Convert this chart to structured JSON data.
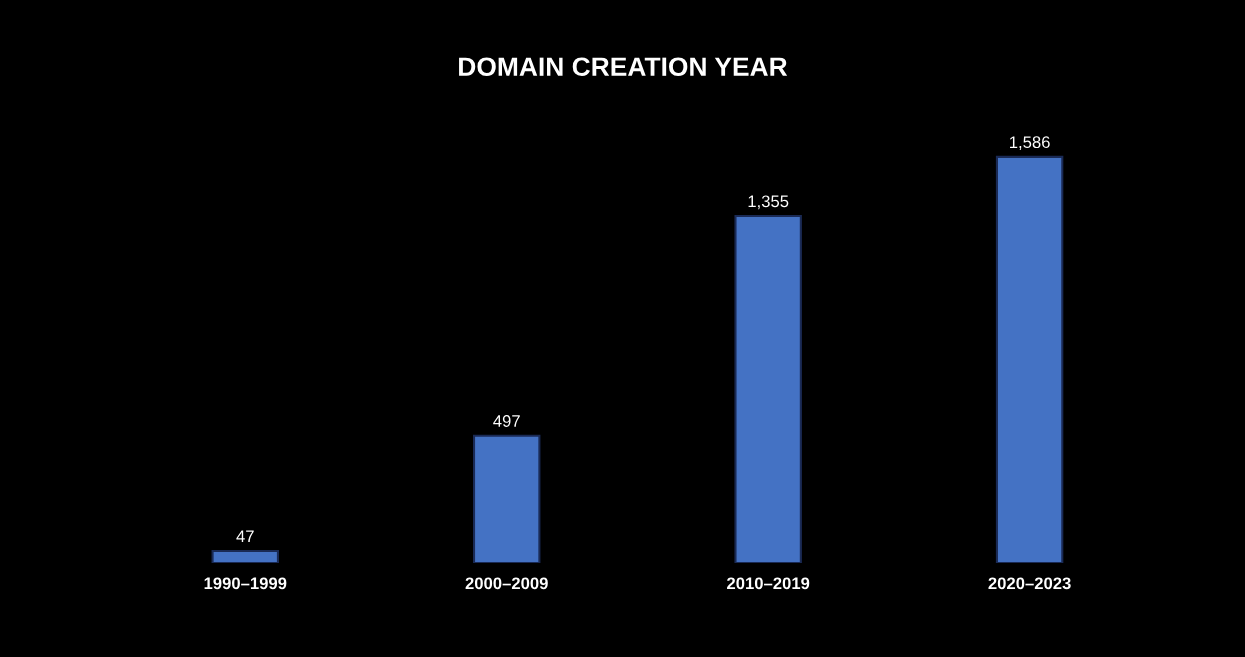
{
  "chart_data": {
    "type": "bar",
    "title": "DOMAIN CREATION YEAR",
    "categories": [
      "1990–1999",
      "2000–2009",
      "2010–2019",
      "2020–2023"
    ],
    "values": [
      47,
      497,
      1355,
      1586
    ],
    "value_labels": [
      "47",
      "497",
      "1,355",
      "1,586"
    ],
    "color": "#4472c4",
    "grid": false,
    "legend": false
  }
}
